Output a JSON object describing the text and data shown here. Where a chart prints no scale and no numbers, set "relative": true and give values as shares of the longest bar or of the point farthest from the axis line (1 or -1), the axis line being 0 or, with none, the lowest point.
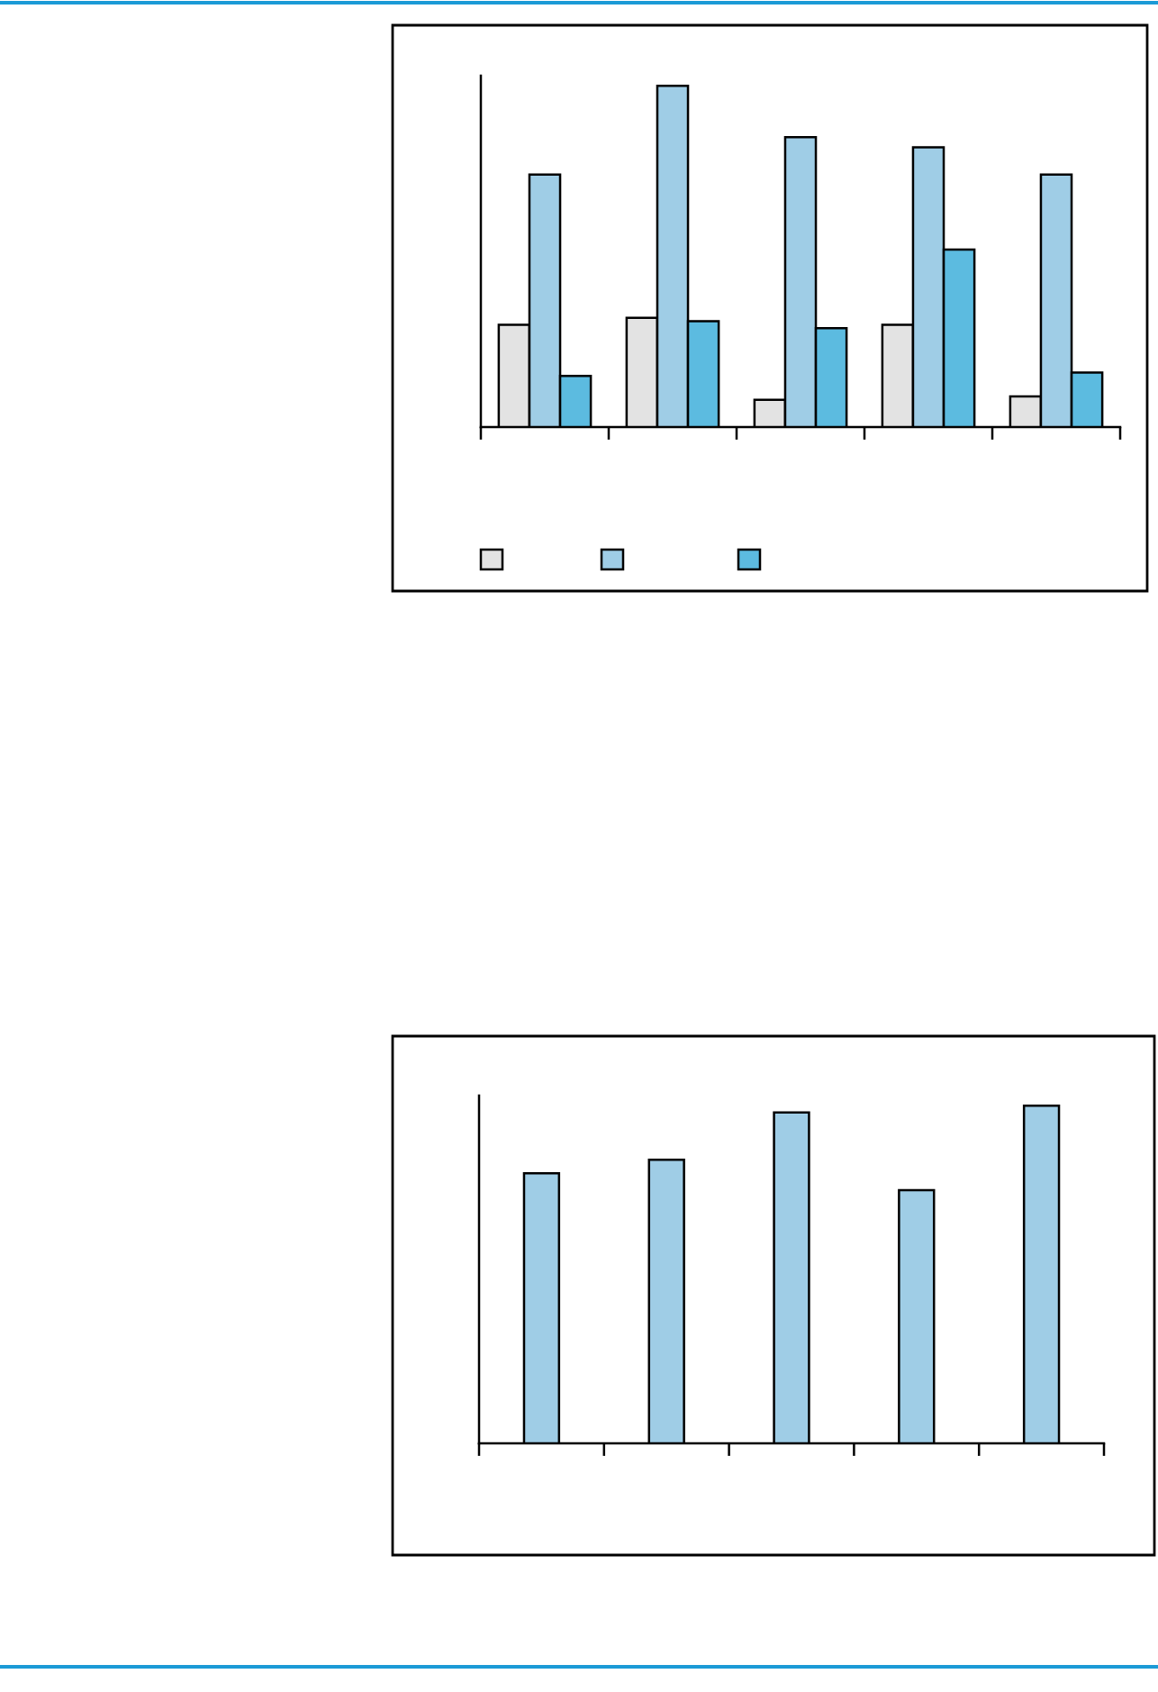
{
  "chart_data": [
    {
      "type": "bar",
      "relative": true,
      "categories": [
        null,
        null,
        null,
        null,
        null
      ],
      "series": [
        {
          "color": "#e3e3e3",
          "values": [
            0.3,
            0.32,
            0.08,
            0.3,
            0.09
          ]
        },
        {
          "color": "#9fcde6",
          "values": [
            0.74,
            1.0,
            0.85,
            0.82,
            0.74
          ]
        },
        {
          "color": "#5cbbe0",
          "values": [
            0.15,
            0.31,
            0.29,
            0.52,
            0.16
          ]
        }
      ]
    },
    {
      "type": "bar",
      "relative": true,
      "categories": [
        null,
        null,
        null,
        null,
        null
      ],
      "values": [
        0.8,
        0.84,
        0.98,
        0.75,
        1.0
      ],
      "color": "#9fcde6"
    }
  ]
}
